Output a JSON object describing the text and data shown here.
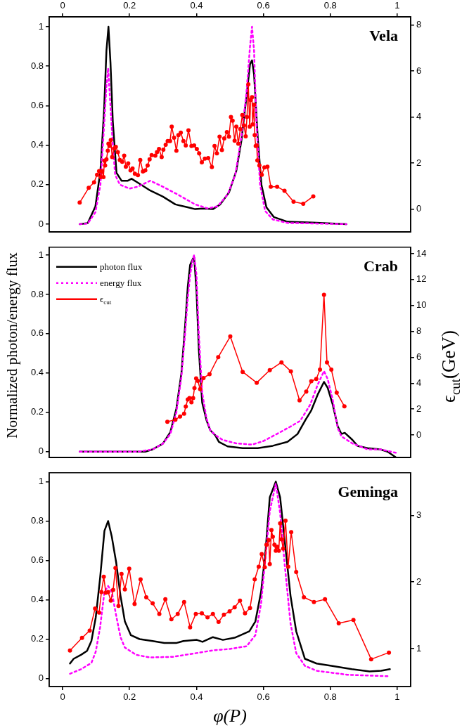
{
  "chart_data": [
    {
      "type": "line",
      "title": "Vela",
      "xlim": [
        -0.04,
        1.04
      ],
      "x2lim": [
        -0.04,
        1.04
      ],
      "x2ticks": [
        0,
        0.2,
        0.4,
        0.6,
        0.8,
        1
      ],
      "ylim": [
        -0.04,
        1.05
      ],
      "yticks": [
        0,
        0.2,
        0.4,
        0.6,
        0.8,
        1
      ],
      "y2lim": [
        -1,
        8.35
      ],
      "y2ticks": [
        0,
        2,
        4,
        6,
        8
      ],
      "tick_labels": "y",
      "legend": false,
      "series": [
        {
          "color": "#000000",
          "line_style": "solid",
          "marker": "none",
          "x": [
            0.051,
            0.075,
            0.098,
            0.113,
            0.124,
            0.131,
            0.137,
            0.143,
            0.15,
            0.161,
            0.176,
            0.195,
            0.206,
            0.225,
            0.262,
            0.299,
            0.337,
            0.374,
            0.396,
            0.419,
            0.449,
            0.471,
            0.497,
            0.519,
            0.534,
            0.549,
            0.56,
            0.566,
            0.572,
            0.583,
            0.594,
            0.609,
            0.631,
            0.672,
            0.747,
            0.848
          ],
          "values": [
            0,
            0.005,
            0.09,
            0.27,
            0.58,
            0.88,
            1.0,
            0.82,
            0.52,
            0.26,
            0.22,
            0.22,
            0.23,
            0.21,
            0.17,
            0.14,
            0.1,
            0.085,
            0.076,
            0.079,
            0.076,
            0.1,
            0.16,
            0.27,
            0.42,
            0.64,
            0.81,
            0.83,
            0.76,
            0.44,
            0.2,
            0.085,
            0.036,
            0.012,
            0.008,
            0
          ]
        },
        {
          "color": "#ff00ff",
          "line_style": "dashed",
          "marker": "none",
          "x": [
            0.051,
            0.075,
            0.098,
            0.113,
            0.124,
            0.131,
            0.136,
            0.143,
            0.15,
            0.157,
            0.171,
            0.2,
            0.225,
            0.262,
            0.299,
            0.344,
            0.396,
            0.433,
            0.463,
            0.493,
            0.516,
            0.534,
            0.549,
            0.56,
            0.566,
            0.572,
            0.579,
            0.59,
            0.605,
            0.628,
            0.672,
            0.848
          ],
          "values": [
            0,
            0.003,
            0.06,
            0.2,
            0.5,
            0.7,
            0.79,
            0.6,
            0.4,
            0.25,
            0.2,
            0.18,
            0.19,
            0.22,
            0.19,
            0.15,
            0.1,
            0.08,
            0.09,
            0.15,
            0.25,
            0.44,
            0.66,
            0.9,
            1.0,
            0.88,
            0.52,
            0.2,
            0.067,
            0.024,
            0.006,
            0
          ]
        },
        {
          "color": "#ff0000",
          "line_style": "solid",
          "marker": "circle",
          "axis": "y2",
          "x": [
            0.051,
            0.078,
            0.094,
            0.103,
            0.109,
            0.114,
            0.118,
            0.122,
            0.125,
            0.127,
            0.131,
            0.135,
            0.137,
            0.14,
            0.144,
            0.148,
            0.154,
            0.159,
            0.165,
            0.171,
            0.178,
            0.184,
            0.189,
            0.196,
            0.203,
            0.209,
            0.216,
            0.225,
            0.232,
            0.24,
            0.247,
            0.254,
            0.26,
            0.266,
            0.277,
            0.282,
            0.288,
            0.296,
            0.301,
            0.308,
            0.314,
            0.321,
            0.326,
            0.333,
            0.34,
            0.346,
            0.353,
            0.361,
            0.368,
            0.376,
            0.385,
            0.393,
            0.401,
            0.408,
            0.416,
            0.425,
            0.435,
            0.446,
            0.454,
            0.461,
            0.469,
            0.476,
            0.483,
            0.491,
            0.497,
            0.503,
            0.508,
            0.514,
            0.519,
            0.525,
            0.531,
            0.537,
            0.542,
            0.547,
            0.551,
            0.555,
            0.559,
            0.562,
            0.566,
            0.568,
            0.572,
            0.574,
            0.577,
            0.58,
            0.582,
            0.588,
            0.595,
            0.603,
            0.612,
            0.622,
            0.641,
            0.663,
            0.69,
            0.719,
            0.749
          ],
          "values": [
            0.28,
            0.92,
            1.16,
            1.49,
            1.65,
            1.39,
            1.65,
            1.39,
            2.1,
            1.89,
            2.16,
            2.53,
            2.84,
            2.74,
            3.0,
            2.26,
            2.63,
            2.7,
            2.47,
            2.13,
            2.05,
            2.32,
            1.84,
            1.98,
            1.68,
            1.76,
            1.53,
            1.47,
            2.13,
            1.63,
            1.68,
            1.89,
            2.16,
            2.34,
            2.32,
            2.47,
            2.61,
            2.26,
            2.58,
            2.79,
            2.95,
            2.95,
            3.58,
            3.1,
            2.53,
            3.21,
            3.32,
            2.95,
            2.76,
            3.42,
            2.74,
            2.76,
            2.61,
            2.42,
            2.03,
            2.19,
            2.21,
            1.82,
            2.74,
            2.42,
            3.14,
            2.56,
            3.07,
            3.34,
            3.14,
            4.0,
            3.84,
            2.97,
            3.58,
            2.84,
            3.47,
            4.08,
            3.63,
            3.16,
            4.0,
            5.42,
            3.58,
            4.74,
            4.86,
            3.68,
            4.53,
            3.21,
            2.74,
            2.76,
            2.11,
            1.89,
            1.49,
            1.81,
            1.84,
            0.97,
            0.97,
            0.79,
            0.32,
            0.23,
            0.55
          ]
        }
      ]
    },
    {
      "type": "line",
      "title": "Crab",
      "ylabel": "Normalized photon/energy flux",
      "y2label": "ϵ$_{cut}$(GeV)",
      "xlim": [
        -0.04,
        1.04
      ],
      "ylim": [
        -0.03,
        1.04
      ],
      "yticks": [
        0,
        0.2,
        0.4,
        0.6,
        0.8,
        1
      ],
      "y2lim": [
        -1.74,
        14.5
      ],
      "y2ticks": [
        0,
        2,
        4,
        6,
        8,
        10,
        12,
        14
      ],
      "tick_labels": "y",
      "legend": "top left",
      "series": [
        {
          "name": "photon flux",
          "color": "#000000",
          "line_style": "solid",
          "marker": "none",
          "x": [
            0.051,
            0.225,
            0.247,
            0.269,
            0.299,
            0.322,
            0.34,
            0.355,
            0.366,
            0.374,
            0.381,
            0.389,
            0.393,
            0.4,
            0.407,
            0.417,
            0.43,
            0.441,
            0.456,
            0.467,
            0.493,
            0.538,
            0.583,
            0.628,
            0.672,
            0.702,
            0.725,
            0.743,
            0.762,
            0.781,
            0.792,
            0.807,
            0.822,
            0.833,
            0.843,
            0.866,
            0.881,
            0.911,
            0.949,
            0.971,
            0.997
          ],
          "values": [
            0,
            0,
            0,
            0.012,
            0.04,
            0.1,
            0.22,
            0.4,
            0.64,
            0.84,
            0.95,
            0.98,
            0.99,
            0.82,
            0.52,
            0.25,
            0.16,
            0.11,
            0.084,
            0.05,
            0.027,
            0.018,
            0.018,
            0.03,
            0.05,
            0.09,
            0.16,
            0.21,
            0.29,
            0.355,
            0.325,
            0.24,
            0.13,
            0.09,
            0.096,
            0.06,
            0.03,
            0.018,
            0.012,
            0,
            -0.03
          ]
        },
        {
          "name": "energy flux",
          "color": "#ff00ff",
          "line_style": "dashed",
          "marker": "none",
          "x": [
            0.051,
            0.225,
            0.269,
            0.299,
            0.322,
            0.34,
            0.355,
            0.366,
            0.374,
            0.381,
            0.389,
            0.393,
            0.4,
            0.407,
            0.417,
            0.43,
            0.441,
            0.456,
            0.478,
            0.52,
            0.566,
            0.6,
            0.64,
            0.68,
            0.71,
            0.74,
            0.762,
            0.781,
            0.792,
            0.807,
            0.822,
            0.833,
            0.866,
            0.911,
            0.949,
            0.997
          ],
          "values": [
            0,
            0,
            0.012,
            0.04,
            0.09,
            0.2,
            0.38,
            0.6,
            0.78,
            0.9,
            0.98,
            1.0,
            0.9,
            0.6,
            0.3,
            0.17,
            0.11,
            0.085,
            0.06,
            0.042,
            0.036,
            0.054,
            0.09,
            0.127,
            0.157,
            0.24,
            0.34,
            0.41,
            0.37,
            0.265,
            0.12,
            0.078,
            0.042,
            0.012,
            0.012,
            -0.006
          ]
        },
        {
          "name": "ϵ$_{cut}$",
          "color": "#ff0000",
          "line_style": "solid",
          "marker": "circle",
          "axis": "y2",
          "x": [
            0.313,
            0.337,
            0.351,
            0.363,
            0.368,
            0.374,
            0.379,
            0.385,
            0.39,
            0.394,
            0.399,
            0.404,
            0.411,
            0.421,
            0.439,
            0.465,
            0.501,
            0.538,
            0.58,
            0.619,
            0.654,
            0.682,
            0.708,
            0.728,
            0.743,
            0.758,
            0.769,
            0.781,
            0.79,
            0.803,
            0.819,
            0.842
          ],
          "values": [
            1.03,
            1.19,
            1.43,
            1.65,
            2.2,
            2.75,
            2.86,
            2.53,
            2.86,
            3.63,
            4.37,
            4.18,
            3.54,
            4.4,
            4.7,
            6.02,
            7.61,
            4.88,
            4.04,
            5.01,
            5.61,
            4.92,
            2.68,
            3.36,
            4.15,
            4.33,
            5.05,
            10.83,
            5.61,
            5.05,
            3.27,
            2.22
          ]
        }
      ]
    },
    {
      "type": "line",
      "title": "Geminga",
      "xlabel": "φ(P)",
      "xlim": [
        -0.04,
        1.04
      ],
      "xticks": [
        0,
        0.2,
        0.4,
        0.6,
        0.8,
        1
      ],
      "ylim": [
        -0.041,
        1.045
      ],
      "yticks": [
        0,
        0.2,
        0.4,
        0.6,
        0.8,
        1
      ],
      "y2lim": [
        0.43,
        3.64
      ],
      "y2ticks": [
        1,
        2,
        3
      ],
      "legend": false,
      "series": [
        {
          "color": "#000000",
          "line_style": "solid",
          "marker": "none",
          "x": [
            0.022,
            0.033,
            0.055,
            0.073,
            0.086,
            0.099,
            0.112,
            0.125,
            0.136,
            0.147,
            0.16,
            0.173,
            0.186,
            0.204,
            0.23,
            0.269,
            0.304,
            0.339,
            0.361,
            0.401,
            0.418,
            0.449,
            0.479,
            0.514,
            0.532,
            0.558,
            0.576,
            0.593,
            0.606,
            0.619,
            0.637,
            0.65,
            0.663,
            0.681,
            0.698,
            0.724,
            0.759,
            0.803,
            0.864,
            0.917,
            0.952,
            0.978
          ],
          "values": [
            0.076,
            0.1,
            0.12,
            0.14,
            0.19,
            0.31,
            0.51,
            0.75,
            0.8,
            0.72,
            0.59,
            0.42,
            0.29,
            0.22,
            0.2,
            0.19,
            0.18,
            0.18,
            0.19,
            0.196,
            0.186,
            0.21,
            0.196,
            0.207,
            0.22,
            0.24,
            0.29,
            0.44,
            0.64,
            0.92,
            1.0,
            0.92,
            0.71,
            0.42,
            0.24,
            0.1,
            0.076,
            0.064,
            0.047,
            0.036,
            0.039,
            0.047
          ]
        },
        {
          "color": "#ff00ff",
          "line_style": "dashed",
          "marker": "none",
          "x": [
            0.022,
            0.055,
            0.086,
            0.099,
            0.112,
            0.125,
            0.136,
            0.147,
            0.16,
            0.173,
            0.186,
            0.22,
            0.26,
            0.33,
            0.4,
            0.45,
            0.5,
            0.55,
            0.576,
            0.593,
            0.606,
            0.619,
            0.637,
            0.65,
            0.663,
            0.681,
            0.698,
            0.724,
            0.759,
            0.85,
            0.978
          ],
          "values": [
            0.024,
            0.047,
            0.079,
            0.136,
            0.26,
            0.44,
            0.47,
            0.44,
            0.32,
            0.21,
            0.157,
            0.12,
            0.107,
            0.11,
            0.129,
            0.143,
            0.15,
            0.164,
            0.22,
            0.38,
            0.61,
            0.85,
            0.99,
            0.84,
            0.59,
            0.28,
            0.129,
            0.064,
            0.039,
            0.019,
            0.011
          ]
        },
        {
          "color": "#ff0000",
          "line_style": "solid",
          "marker": "circle",
          "axis": "y2",
          "x": [
            0.022,
            0.058,
            0.081,
            0.097,
            0.109,
            0.116,
            0.123,
            0.129,
            0.136,
            0.144,
            0.151,
            0.158,
            0.167,
            0.176,
            0.186,
            0.199,
            0.215,
            0.233,
            0.25,
            0.269,
            0.289,
            0.307,
            0.325,
            0.344,
            0.363,
            0.381,
            0.398,
            0.416,
            0.433,
            0.449,
            0.466,
            0.482,
            0.499,
            0.514,
            0.53,
            0.545,
            0.56,
            0.574,
            0.586,
            0.595,
            0.604,
            0.609,
            0.616,
            0.619,
            0.624,
            0.628,
            0.633,
            0.637,
            0.641,
            0.646,
            0.65,
            0.654,
            0.659,
            0.666,
            0.674,
            0.683,
            0.698,
            0.721,
            0.751,
            0.784,
            0.825,
            0.869,
            0.922,
            0.975
          ],
          "values": [
            0.97,
            1.16,
            1.27,
            1.6,
            1.54,
            1.85,
            2.08,
            1.84,
            1.85,
            1.72,
            1.88,
            2.21,
            1.64,
            2.12,
            1.89,
            2.2,
            1.67,
            2.04,
            1.77,
            1.68,
            1.52,
            1.74,
            1.44,
            1.52,
            1.7,
            1.32,
            1.52,
            1.53,
            1.47,
            1.52,
            1.4,
            1.51,
            1.56,
            1.62,
            1.72,
            1.53,
            1.61,
            2.04,
            2.23,
            2.42,
            2.22,
            2.56,
            2.63,
            2.27,
            2.78,
            2.68,
            2.56,
            2.47,
            2.53,
            2.47,
            2.88,
            2.64,
            2.5,
            2.92,
            2.23,
            2.75,
            2.15,
            1.77,
            1.7,
            1.74,
            1.38,
            1.43,
            0.84,
            0.94
          ]
        }
      ]
    }
  ]
}
